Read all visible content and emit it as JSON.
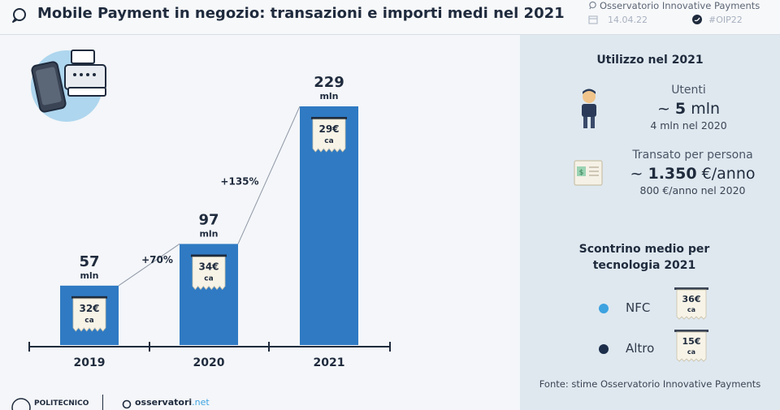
{
  "header": {
    "title": "Mobile Payment in negozio: transazioni e importi medi nel 2021",
    "brand": "Osservatorio Innovative Payments",
    "date": "14.04.22",
    "hashtag": "#OIP22"
  },
  "chart_data": {
    "type": "bar",
    "title": "Mobile Payment in negozio: transazioni e importi medi nel 2021",
    "categories": [
      "2019",
      "2020",
      "2021"
    ],
    "values": [
      57,
      97,
      229
    ],
    "value_labels": [
      "57",
      "97",
      "229"
    ],
    "unit": "mln",
    "avg_ticket": [
      "32€",
      "34€",
      "29€"
    ],
    "avg_ticket_suffix": "ca",
    "growth": [
      {
        "from": "2019",
        "to": "2020",
        "label": "+70%"
      },
      {
        "from": "2020",
        "to": "2021",
        "label": "+135%"
      }
    ],
    "ylim": [
      0,
      229
    ],
    "bar_color": "#2f7ac3"
  },
  "usage": {
    "title": "Utilizzo nel 2021",
    "users_label": "Utenti",
    "users_approx": "~",
    "users_value": "5",
    "users_unit": "mln",
    "users_prev": "4 mln nel 2020",
    "spend_label": "Transato per persona",
    "spend_approx": "~",
    "spend_value": "1.350",
    "spend_unit": "€/anno",
    "spend_prev": "800 €/anno nel 2020"
  },
  "tech_ticket": {
    "title_line1": "Scontrino medio per",
    "title_line2": "tecnologia 2021",
    "items": [
      {
        "label": "NFC",
        "value": "36€",
        "suffix": "ca",
        "color": "#3da2e0"
      },
      {
        "label": "Altro",
        "value": "15€",
        "suffix": "ca",
        "color": "#1c2e4a"
      }
    ]
  },
  "source": "Fonte: stime Osservatorio Innovative Payments",
  "footer": {
    "polimi": "POLITECNICO",
    "osservatori": "osservatori",
    "osservatori_suffix": ".net"
  }
}
